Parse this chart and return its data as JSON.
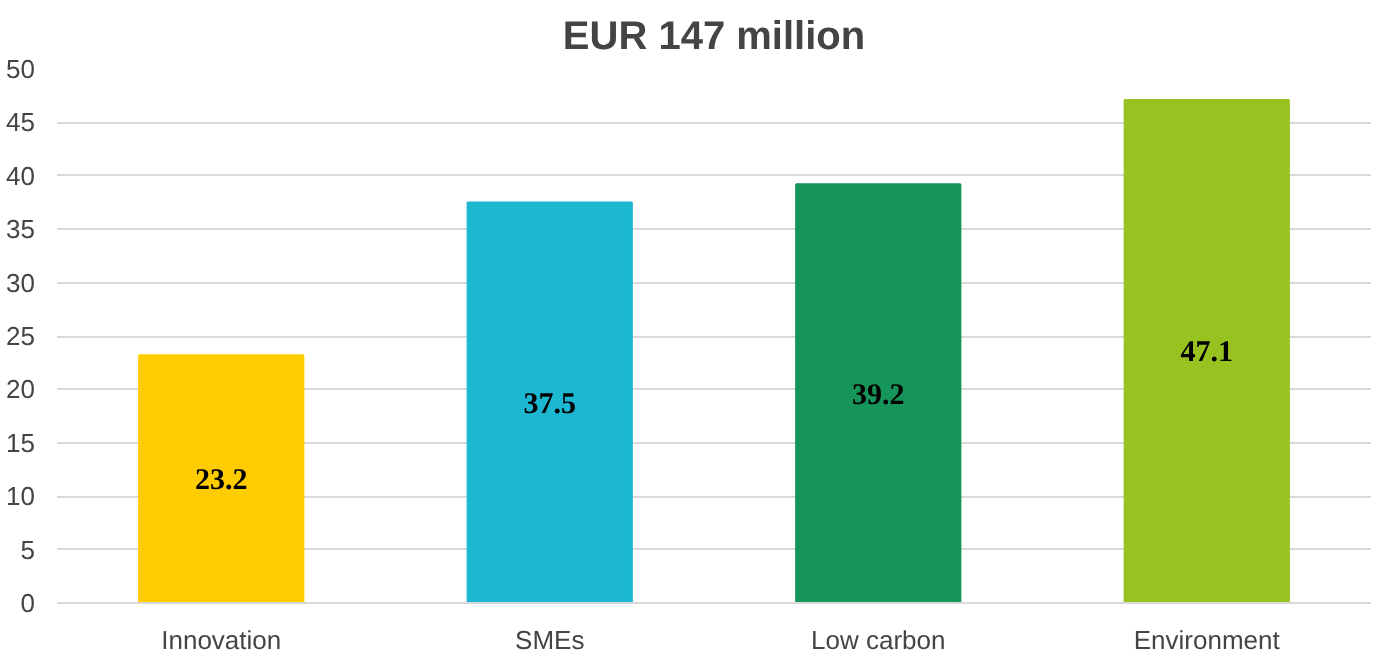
{
  "chart_data": {
    "type": "bar",
    "title": "EUR 147 million",
    "categories": [
      "Innovation",
      "SMEs",
      "Low carbon",
      "Environment"
    ],
    "values": [
      23.2,
      37.5,
      39.2,
      47.1
    ],
    "colors": [
      "#ffcc00",
      "#1cb8d2",
      "#16955a",
      "#98c21f"
    ],
    "ylim": [
      0,
      50
    ],
    "yticks": [
      0,
      5,
      10,
      15,
      20,
      25,
      30,
      35,
      40,
      45,
      50
    ],
    "grid": "y",
    "data_labels": true
  }
}
